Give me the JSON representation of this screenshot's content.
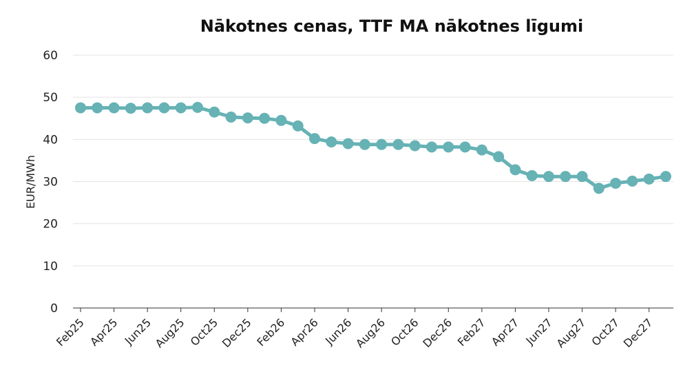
{
  "chart_data": {
    "type": "line",
    "title": "Nākotnes cenas, TTF MA nākotnes līgumi",
    "ylabel": "EUR/MWh",
    "xlabel": "",
    "ylim": [
      0,
      60
    ],
    "yticks": [
      0,
      10,
      20,
      30,
      40,
      50,
      60
    ],
    "grid": true,
    "x": [
      "Feb25",
      "Mar25",
      "Apr25",
      "May25",
      "Jun25",
      "Jul25",
      "Aug25",
      "Sep25",
      "Oct25",
      "Nov25",
      "Dec25",
      "Jan26",
      "Feb26",
      "Mar26",
      "Apr26",
      "May26",
      "Jun26",
      "Jul26",
      "Aug26",
      "Sep26",
      "Oct26",
      "Nov26",
      "Dec26",
      "Jan27",
      "Feb27",
      "Mar27",
      "Apr27",
      "May27",
      "Jun27",
      "Jul27",
      "Aug27",
      "Sep27",
      "Oct27",
      "Nov27",
      "Dec27",
      "Jan28"
    ],
    "xtick_labels": [
      "Feb25",
      "Apr25",
      "Jun25",
      "Aug25",
      "Oct25",
      "Dec25",
      "Feb26",
      "Apr26",
      "Jun26",
      "Aug26",
      "Oct26",
      "Dec26",
      "Feb27",
      "Apr27",
      "Jun27",
      "Aug27",
      "Oct27",
      "Dec27"
    ],
    "series": [
      {
        "values": [
          47.5,
          47.5,
          47.5,
          47.4,
          47.5,
          47.5,
          47.5,
          47.6,
          46.5,
          45.3,
          45.1,
          45.0,
          44.5,
          43.2,
          40.2,
          39.4,
          39.0,
          38.8,
          38.8,
          38.8,
          38.5,
          38.2,
          38.2,
          38.2,
          37.5,
          35.9,
          32.8,
          31.4,
          31.2,
          31.2,
          31.2,
          28.4,
          29.6,
          30.1,
          30.6,
          31.2
        ],
        "color": "#66b2b5"
      }
    ]
  }
}
